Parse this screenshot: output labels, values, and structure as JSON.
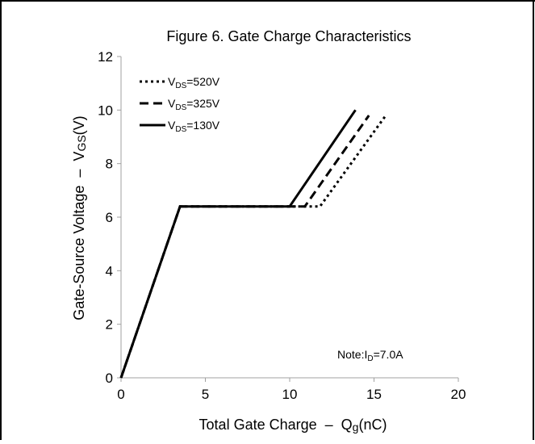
{
  "chart_data": {
    "type": "line",
    "title": "Figure 6. Gate Charge Characteristics",
    "xlabel": "Total Gate Charge  –  Qg(nC)",
    "ylabel": "Gate-Source Voltage  –  VGS(V)",
    "xlim": [
      0,
      20
    ],
    "ylim": [
      0,
      12
    ],
    "x_ticks": [
      0,
      5,
      10,
      15,
      20
    ],
    "y_ticks": [
      0,
      2,
      4,
      6,
      8,
      10,
      12
    ],
    "grid": false,
    "legend_position": "top-left",
    "note": "Note:ID=7.0A",
    "series": [
      {
        "name": "VDS=520V",
        "style": "dotted",
        "points": [
          [
            0,
            0
          ],
          [
            3.5,
            6.4
          ],
          [
            11.8,
            6.4
          ],
          [
            15.7,
            9.8
          ]
        ]
      },
      {
        "name": "VDS=325V",
        "style": "dashed",
        "points": [
          [
            0,
            0
          ],
          [
            3.5,
            6.4
          ],
          [
            10.9,
            6.4
          ],
          [
            14.7,
            9.8
          ]
        ]
      },
      {
        "name": "VDS=130V",
        "style": "solid",
        "points": [
          [
            0,
            0
          ],
          [
            3.5,
            6.4
          ],
          [
            10.0,
            6.4
          ],
          [
            13.9,
            10.0
          ]
        ]
      }
    ]
  }
}
